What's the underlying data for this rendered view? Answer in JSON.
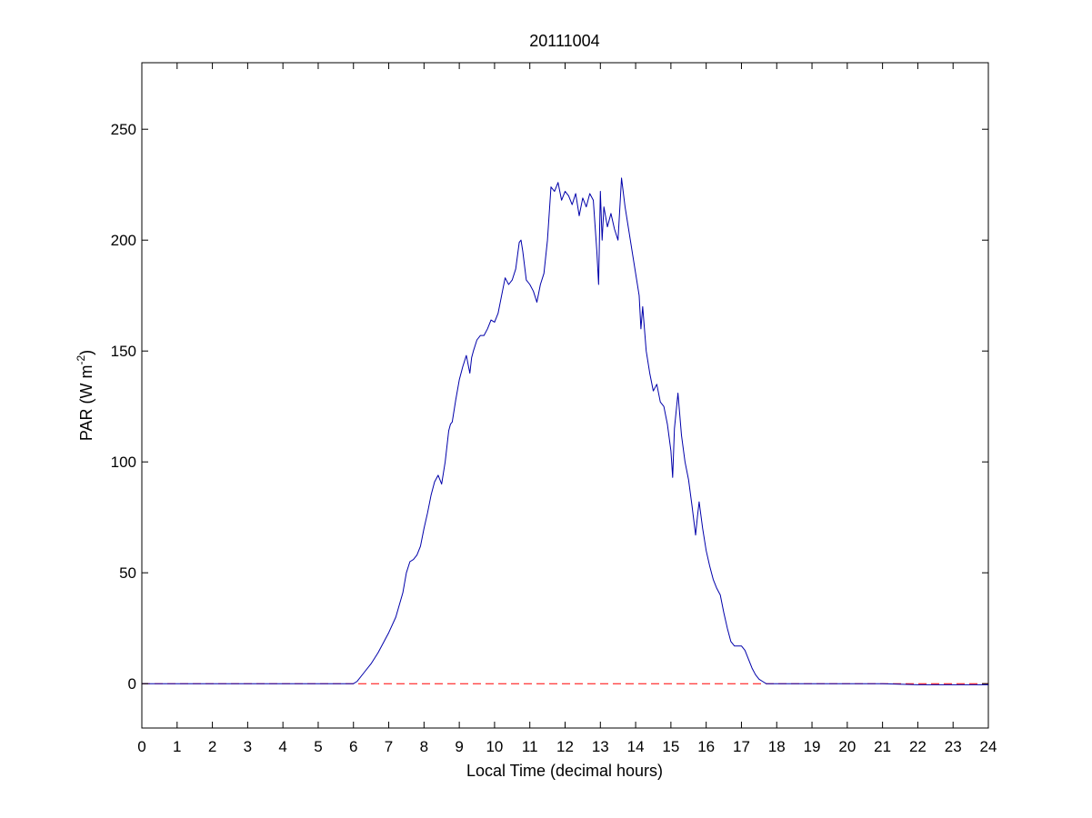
{
  "chart_data": {
    "type": "line",
    "title": "20111004",
    "xlabel": "Local Time (decimal hours)",
    "ylabel": "PAR (W m",
    "ylabel_superscript": "-2",
    "ylabel_close": ")",
    "xlim": [
      0,
      24
    ],
    "ylim": [
      -20,
      280
    ],
    "xticks": [
      0,
      1,
      2,
      3,
      4,
      5,
      6,
      7,
      8,
      9,
      10,
      11,
      12,
      13,
      14,
      15,
      16,
      17,
      18,
      19,
      20,
      21,
      22,
      23,
      24
    ],
    "yticks": [
      0,
      50,
      100,
      150,
      200,
      250
    ],
    "grid": false,
    "legend": "none",
    "colors": {
      "par": "#0000aa",
      "zero": "#ff0000"
    },
    "series": [
      {
        "style": "solid",
        "x": [
          0,
          6.0,
          6.1,
          6.3,
          6.5,
          6.7,
          6.9,
          7.0,
          7.2,
          7.4,
          7.5,
          7.6,
          7.7,
          7.8,
          7.9,
          8.0,
          8.1,
          8.2,
          8.3,
          8.4,
          8.5,
          8.6,
          8.7,
          8.75,
          8.8,
          8.9,
          9.0,
          9.1,
          9.2,
          9.3,
          9.35,
          9.4,
          9.5,
          9.6,
          9.7,
          9.8,
          9.9,
          10.0,
          10.1,
          10.2,
          10.3,
          10.4,
          10.5,
          10.6,
          10.7,
          10.75,
          10.8,
          10.9,
          11.0,
          11.1,
          11.2,
          11.3,
          11.4,
          11.5,
          11.6,
          11.7,
          11.8,
          11.9,
          12.0,
          12.1,
          12.2,
          12.3,
          12.4,
          12.5,
          12.6,
          12.7,
          12.8,
          12.9,
          12.95,
          13.0,
          13.05,
          13.1,
          13.2,
          13.3,
          13.4,
          13.5,
          13.6,
          13.7,
          13.8,
          13.9,
          14.0,
          14.1,
          14.15,
          14.2,
          14.3,
          14.4,
          14.5,
          14.6,
          14.7,
          14.8,
          14.9,
          15.0,
          15.05,
          15.1,
          15.2,
          15.3,
          15.4,
          15.5,
          15.6,
          15.7,
          15.75,
          15.8,
          15.9,
          16.0,
          16.1,
          16.2,
          16.3,
          16.4,
          16.5,
          16.6,
          16.7,
          16.8,
          16.9,
          17.0,
          17.1,
          17.2,
          17.3,
          17.4,
          17.5,
          17.6,
          17.7,
          17.8,
          17.9,
          18.0,
          19.0,
          20.0,
          21.0,
          22.0,
          23.0,
          24.0
        ],
        "y": [
          0,
          0,
          1,
          5,
          9,
          14,
          20,
          23,
          30,
          41,
          50,
          55,
          56,
          58,
          62,
          70,
          77,
          85,
          91,
          94,
          90,
          100,
          114,
          117,
          118,
          128,
          137,
          143,
          148,
          140,
          147,
          150,
          155,
          157,
          157,
          160,
          164,
          163,
          167,
          175,
          183,
          180,
          182,
          187,
          199,
          200,
          195,
          182,
          180,
          177,
          172,
          180,
          185,
          200,
          224,
          222,
          226,
          218,
          222,
          220,
          216,
          221,
          211,
          219,
          215,
          221,
          218,
          195,
          180,
          222,
          200,
          215,
          206,
          212,
          205,
          200,
          228,
          215,
          205,
          195,
          185,
          175,
          160,
          170,
          150,
          140,
          132,
          135,
          127,
          125,
          117,
          105,
          93,
          115,
          131,
          112,
          100,
          92,
          80,
          67,
          75,
          82,
          70,
          60,
          53,
          47,
          43,
          40,
          32,
          25,
          19,
          17,
          17,
          17,
          15,
          11,
          7,
          4,
          2,
          1,
          0,
          0,
          0,
          0,
          0,
          0,
          0,
          -0.5,
          -0.5,
          -0.5
        ]
      },
      {
        "style": "dashed",
        "x": [
          0,
          24
        ],
        "y": [
          0,
          0
        ]
      }
    ]
  }
}
